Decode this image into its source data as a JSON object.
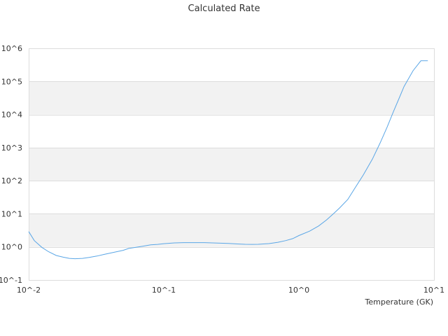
{
  "chart_data": {
    "type": "line",
    "title": "Calculated Rate",
    "xlabel": "Temperature (GK)",
    "ylabel": "",
    "x_scale": "log",
    "y_scale": "log",
    "xlim": [
      0.01,
      10
    ],
    "ylim": [
      0.1,
      1000000
    ],
    "x_ticks": [
      {
        "value": 0.01,
        "label": "10^-2"
      },
      {
        "value": 0.1,
        "label": "10^-1"
      },
      {
        "value": 1,
        "label": "10^0"
      },
      {
        "value": 10,
        "label": "10^1"
      }
    ],
    "y_ticks": [
      {
        "value": 0.1,
        "label": "10^-1"
      },
      {
        "value": 1,
        "label": "10^0"
      },
      {
        "value": 10,
        "label": "10^1"
      },
      {
        "value": 100,
        "label": "10^2"
      },
      {
        "value": 1000,
        "label": "10^3"
      },
      {
        "value": 10000,
        "label": "10^4"
      },
      {
        "value": 100000,
        "label": "10^5"
      },
      {
        "value": 1000000,
        "label": "10^6"
      }
    ],
    "grid": "horizontal bands",
    "colors": {
      "line": "#5aa6e6",
      "band": "#f2f2f2",
      "grid": "#dddddd"
    },
    "series": [
      {
        "x": [
          0.01,
          0.011,
          0.0125,
          0.014,
          0.016,
          0.018,
          0.02,
          0.022,
          0.025,
          0.028,
          0.032,
          0.036,
          0.04,
          0.045,
          0.05,
          0.055,
          0.06,
          0.07,
          0.08,
          0.09,
          0.1,
          0.12,
          0.14,
          0.16,
          0.2,
          0.25,
          0.3,
          0.35,
          0.4,
          0.45,
          0.5,
          0.6,
          0.7,
          0.8,
          0.9,
          1.0,
          1.2,
          1.4,
          1.6,
          1.8,
          2.0,
          2.3,
          2.6,
          3.0,
          3.5,
          4.0,
          4.5,
          5.0,
          5.5,
          6.0,
          7.0,
          8.0,
          9.0
        ],
        "y": [
          2.9,
          1.55,
          0.97,
          0.72,
          0.55,
          0.49,
          0.45,
          0.44,
          0.45,
          0.48,
          0.53,
          0.59,
          0.65,
          0.72,
          0.79,
          0.9,
          0.95,
          1.05,
          1.15,
          1.19,
          1.25,
          1.32,
          1.35,
          1.35,
          1.35,
          1.3,
          1.27,
          1.23,
          1.2,
          1.19,
          1.2,
          1.26,
          1.38,
          1.55,
          1.78,
          2.2,
          3.0,
          4.3,
          6.5,
          10,
          15,
          27,
          60,
          150,
          450,
          1400,
          4200,
          12000,
          30000,
          70000,
          210000,
          420000,
          420000
        ]
      }
    ]
  }
}
